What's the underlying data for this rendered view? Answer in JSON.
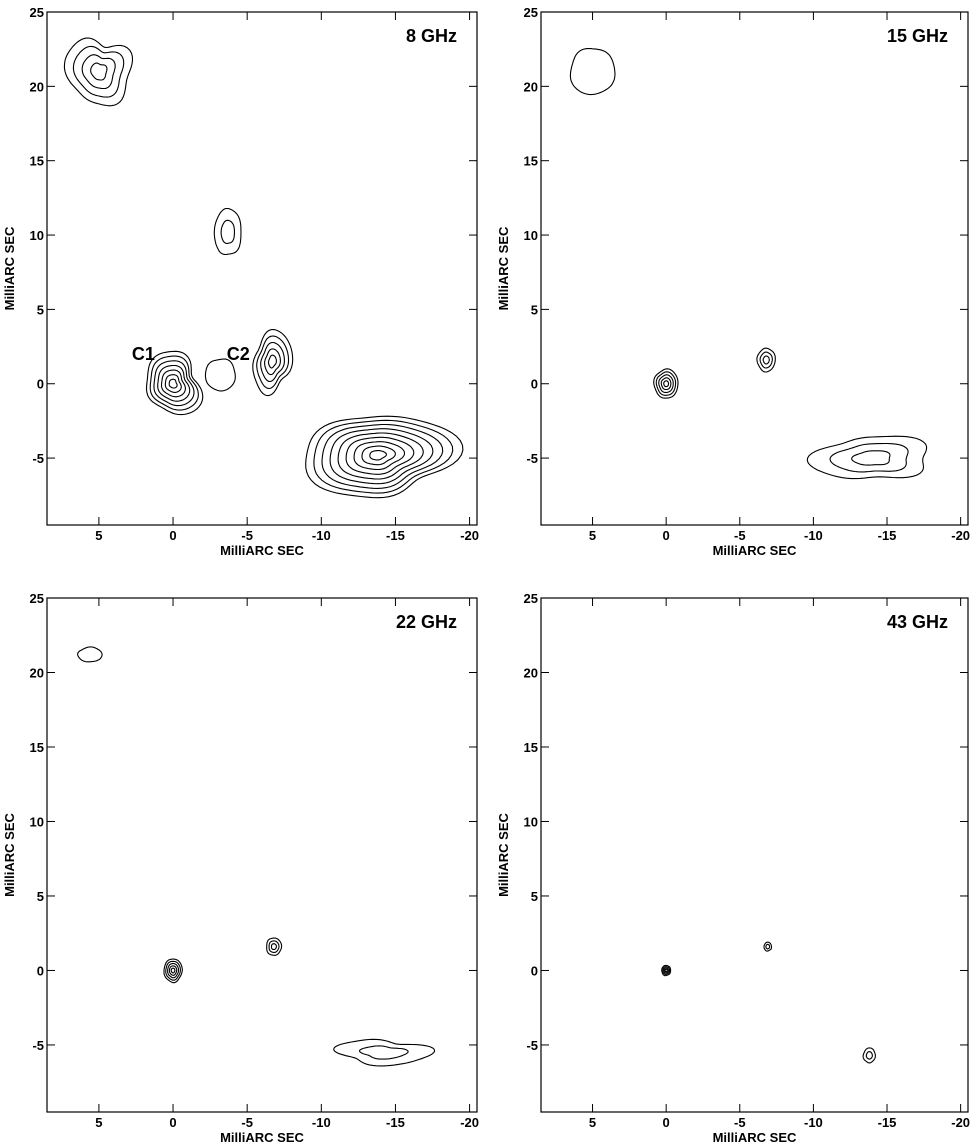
{
  "chart_data": [
    {
      "type": "contour",
      "title": "8 GHz",
      "xlabel": "MilliARC SEC",
      "ylabel": "MilliARC SEC",
      "xlim": [
        8.5,
        -20.5
      ],
      "ylim": [
        -9.5,
        25
      ],
      "x_ticks": [
        5,
        0,
        -5,
        -10,
        -15,
        -20
      ],
      "y_ticks": [
        -5,
        0,
        5,
        10,
        15,
        20,
        25
      ],
      "grid": false,
      "annotations": [
        {
          "text": "C1",
          "x": 2.0,
          "y": 2.0
        },
        {
          "text": "C2",
          "x": -4.4,
          "y": 2.0
        }
      ],
      "features": [
        {
          "name": "C1",
          "x": 0,
          "y": 0,
          "rx": 1.9,
          "ry": 2.0,
          "levels": 7
        },
        {
          "name": "C2-small",
          "x": -3.2,
          "y": 0.6,
          "rx": 1.0,
          "ry": 1.1,
          "levels": 1
        },
        {
          "name": "C2",
          "x": -6.7,
          "y": 1.5,
          "rx": 1.3,
          "ry": 2.0,
          "levels": 5
        },
        {
          "name": "jet-sw",
          "x": -13.8,
          "y": -4.8,
          "rx": 4.6,
          "ry": 3.0,
          "levels": 9
        },
        {
          "name": "jet-nw-core",
          "x": 5.0,
          "y": 21.0,
          "rx": 2.0,
          "ry": 2.4,
          "levels": 4
        },
        {
          "name": "jet-nw-knot",
          "x": -3.7,
          "y": 10.2,
          "rx": 0.9,
          "ry": 1.6,
          "levels": 2
        }
      ]
    },
    {
      "type": "contour",
      "title": "15 GHz",
      "xlabel": "MilliARC SEC",
      "ylabel": "MilliARC SEC",
      "xlim": [
        8.5,
        -20.5
      ],
      "ylim": [
        -9.5,
        25
      ],
      "x_ticks": [
        5,
        0,
        -5,
        -10,
        -15,
        -20
      ],
      "y_ticks": [
        -5,
        0,
        5,
        10,
        15,
        20,
        25
      ],
      "grid": false,
      "features": [
        {
          "name": "C1",
          "x": 0,
          "y": 0,
          "rx": 0.8,
          "ry": 1.0,
          "levels": 5
        },
        {
          "name": "C2",
          "x": -6.8,
          "y": 1.6,
          "rx": 0.6,
          "ry": 0.8,
          "levels": 3
        },
        {
          "name": "jet-sw",
          "x": -14.0,
          "y": -5.0,
          "rx": 3.6,
          "ry": 1.6,
          "levels": 3
        },
        {
          "name": "jet-nw",
          "x": 5.0,
          "y": 21.0,
          "rx": 1.5,
          "ry": 1.6,
          "levels": 1
        }
      ]
    },
    {
      "type": "contour",
      "title": "22 GHz",
      "xlabel": "MilliARC SEC",
      "ylabel": "MilliARC SEC",
      "xlim": [
        8.5,
        -20.5
      ],
      "ylim": [
        -9.5,
        25
      ],
      "x_ticks": [
        5,
        0,
        -5,
        -10,
        -15,
        -20
      ],
      "y_ticks": [
        -5,
        0,
        5,
        10,
        15,
        20,
        25
      ],
      "grid": false,
      "features": [
        {
          "name": "C1",
          "x": 0,
          "y": 0,
          "rx": 0.6,
          "ry": 0.8,
          "levels": 5
        },
        {
          "name": "C2",
          "x": -6.8,
          "y": 1.6,
          "rx": 0.5,
          "ry": 0.6,
          "levels": 3
        },
        {
          "name": "jet-sw",
          "x": -14.2,
          "y": -5.5,
          "rx": 2.8,
          "ry": 0.9,
          "levels": 2
        },
        {
          "name": "jet-nw",
          "x": 5.6,
          "y": 21.2,
          "rx": 0.8,
          "ry": 0.5,
          "levels": 1
        }
      ]
    },
    {
      "type": "contour",
      "title": "43 GHz",
      "xlabel": "MilliARC SEC",
      "ylabel": "MilliARC SEC",
      "xlim": [
        8.5,
        -20.5
      ],
      "ylim": [
        -9.5,
        25
      ],
      "x_ticks": [
        5,
        0,
        -5,
        -10,
        -15,
        -20
      ],
      "y_ticks": [
        -5,
        0,
        5,
        10,
        15,
        20,
        25
      ],
      "grid": false,
      "features": [
        {
          "name": "C1",
          "x": 0,
          "y": 0,
          "rx": 0.3,
          "ry": 0.35,
          "levels": 4
        },
        {
          "name": "C2",
          "x": -6.9,
          "y": 1.6,
          "rx": 0.25,
          "ry": 0.3,
          "levels": 2
        },
        {
          "name": "jet-sw",
          "x": -13.8,
          "y": -5.7,
          "rx": 0.4,
          "ry": 0.5,
          "levels": 2
        }
      ]
    }
  ]
}
